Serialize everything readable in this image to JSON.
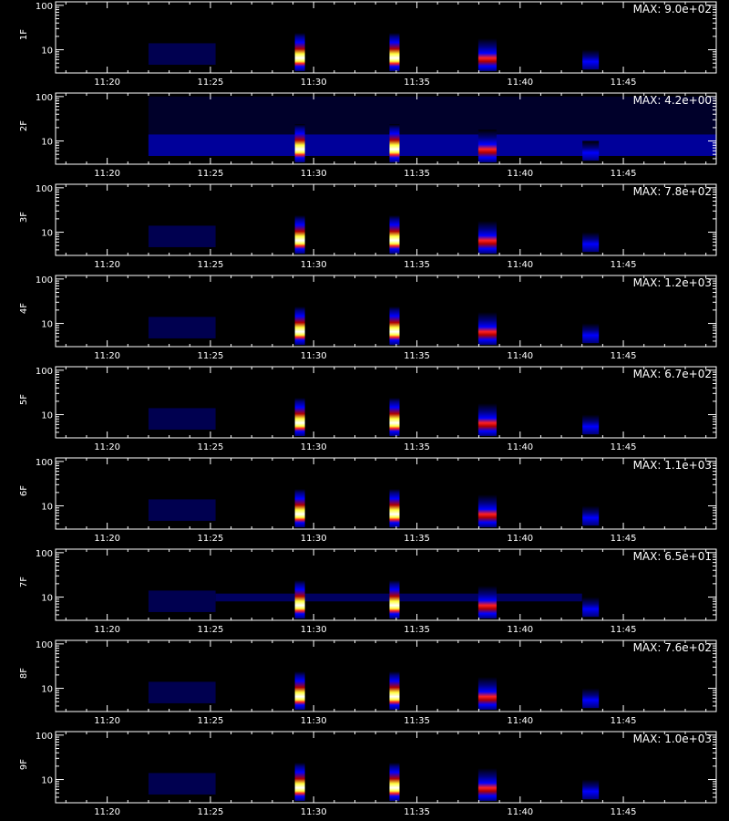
{
  "chart_data": {
    "type": "heatmap",
    "x_axis": {
      "range": [
        "11:17:30",
        "11:49:30"
      ],
      "tick_labels": [
        "11:20",
        "11:25",
        "11:30",
        "11:35",
        "11:40",
        "11:45"
      ]
    },
    "y_axis": {
      "scale": "log",
      "range": [
        3,
        120
      ],
      "tick_labels": [
        "10",
        "100"
      ]
    },
    "x_axis_title": "",
    "colormap": [
      "#000000",
      "#00007a",
      "#0000ff",
      "#b00000",
      "#ff2020",
      "#ffff40",
      "#ffffff"
    ],
    "events": [
      {
        "time": "11:29:20",
        "type": "burst"
      },
      {
        "time": "11:33:55",
        "type": "burst"
      },
      {
        "time": "11:38:25",
        "type": "wide"
      },
      {
        "time": "11:43:25",
        "type": "small"
      }
    ],
    "panels": [
      {
        "label": "1F",
        "max_label": "MAX: 9.0e+02"
      },
      {
        "label": "2F",
        "max_label": "MAX: 4.2e+00"
      },
      {
        "label": "3F",
        "max_label": "MAX: 7.8e+02"
      },
      {
        "label": "4F",
        "max_label": "MAX: 1.2e+03"
      },
      {
        "label": "5F",
        "max_label": "MAX: 6.7e+02"
      },
      {
        "label": "6F",
        "max_label": "MAX: 1.1e+03"
      },
      {
        "label": "7F",
        "max_label": "MAX: 6.5e+01"
      },
      {
        "label": "8F",
        "max_label": "MAX: 7.6e+02"
      },
      {
        "label": "9F",
        "max_label": "MAX: 1.0e+03"
      }
    ]
  }
}
